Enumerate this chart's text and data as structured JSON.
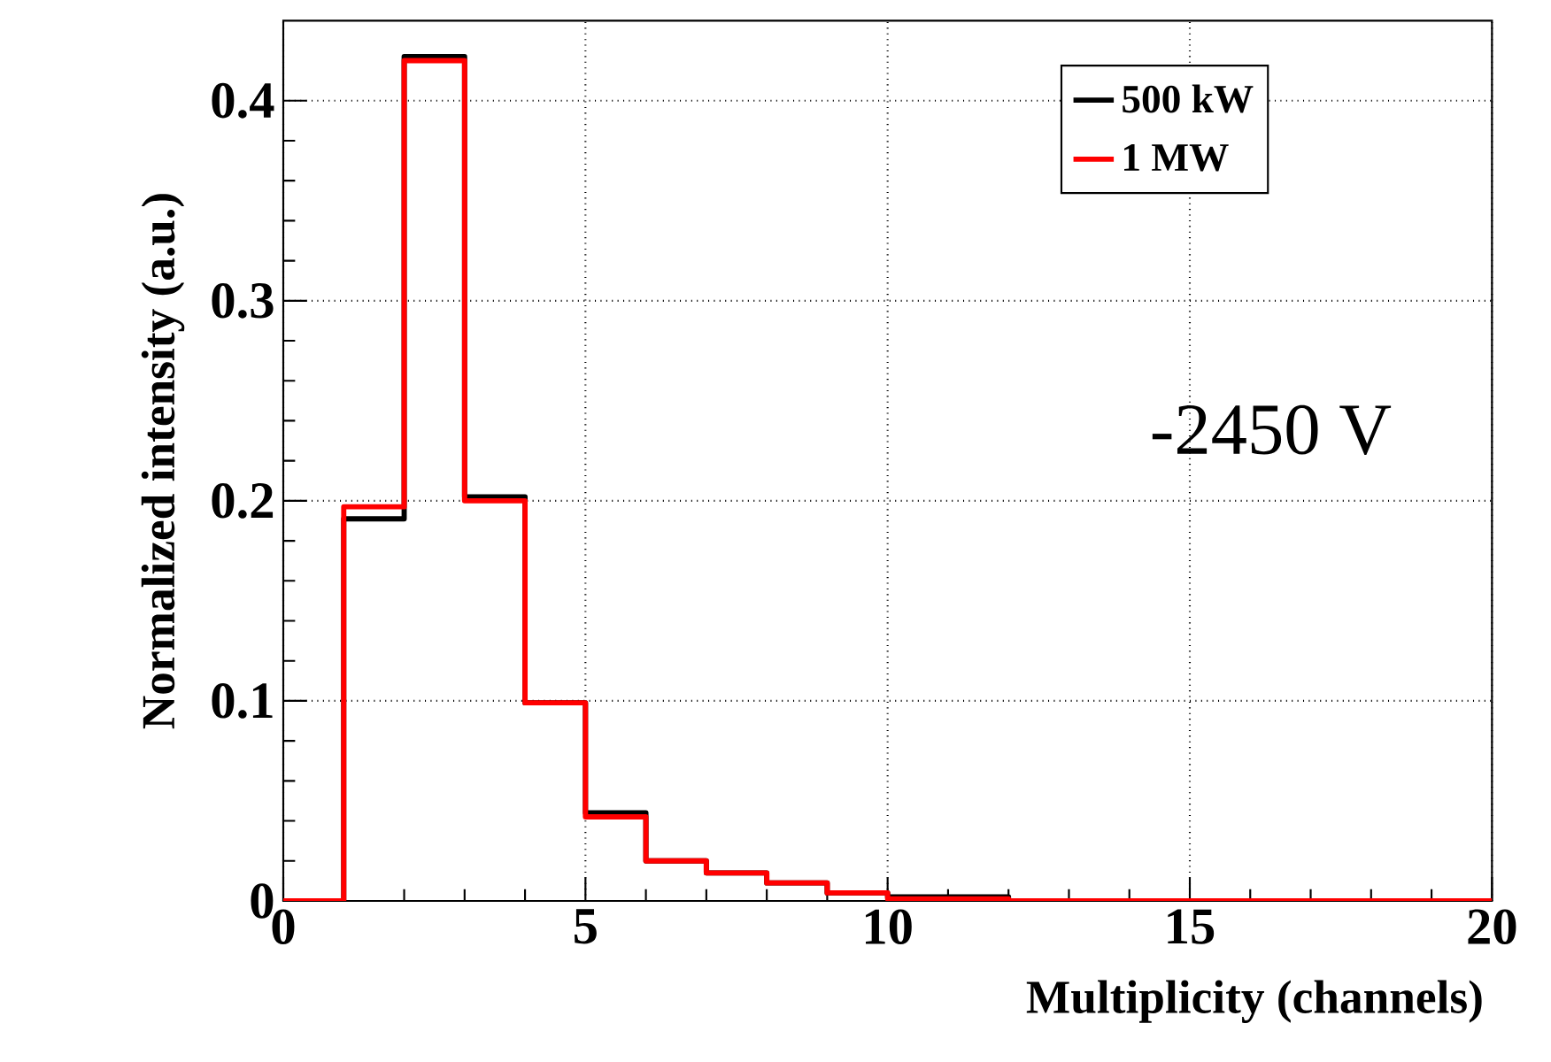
{
  "chart_data": {
    "type": "histogram",
    "xlabel": "Multiplicity (channels)",
    "ylabel": "Normalized intensity (a.u.)",
    "bins": [
      0,
      1,
      2,
      3,
      4,
      5,
      6,
      7,
      8,
      9,
      10,
      11,
      12,
      13,
      14,
      15,
      16,
      17,
      18,
      19,
      20
    ],
    "series": [
      {
        "name": "500 kW",
        "color": "#000000",
        "values": [
          0,
          0.191,
          0.422,
          0.202,
          0.099,
          0.044,
          0.02,
          0.014,
          0.009,
          0.004,
          0.002,
          0.002,
          0,
          0,
          0,
          0,
          0,
          0,
          0,
          0
        ]
      },
      {
        "name": "1 MW",
        "color": "#ff0000",
        "values": [
          0,
          0.197,
          0.42,
          0.2,
          0.099,
          0.042,
          0.02,
          0.014,
          0.009,
          0.004,
          0.001,
          0.001,
          0,
          0,
          0,
          0,
          0,
          0,
          0,
          0
        ]
      }
    ],
    "annotations": [
      "-2450 V"
    ],
    "xlim": [
      0,
      20
    ],
    "ylim": [
      0,
      0.44
    ],
    "xticks": [
      0,
      5,
      10,
      15,
      20
    ],
    "yticks": [
      0,
      0.1,
      0.2,
      0.3,
      0.4
    ],
    "grid": true,
    "legend": "top right"
  }
}
